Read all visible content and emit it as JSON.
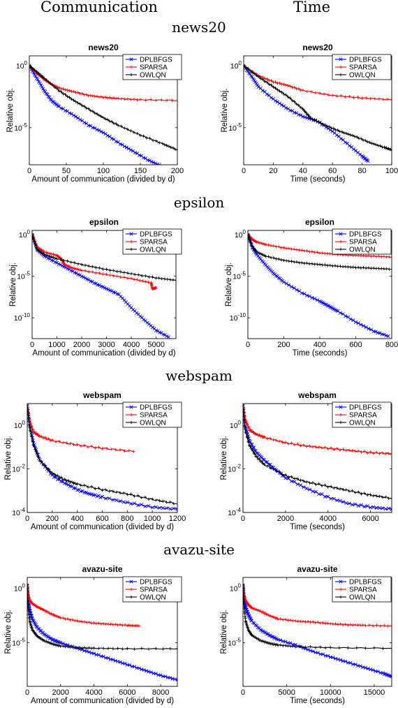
{
  "column_headers": [
    "Communication",
    "Time"
  ],
  "row_headers": [
    "news20",
    "epsilon",
    "webspam",
    "avazu-site"
  ],
  "colors": {
    "DPLBFGS": "#0000ff",
    "SPARSA": "#ff0000",
    "OWLQN": "#000000"
  },
  "chart_data": [
    {
      "type": "line",
      "title": "news20",
      "xlabel": "Amount of communication (divided by d)",
      "ylabel": "Relative obj.",
      "xlim": [
        0,
        200
      ],
      "ylim_log10": [
        -8,
        0.8
      ],
      "y_scale": "log",
      "xticks": [
        0,
        50,
        100,
        150,
        200
      ],
      "yticks": [
        {
          "v": 0,
          "label": "10^0"
        },
        {
          "v": -5,
          "label": "10^-5"
        }
      ],
      "legend": [
        "DPLBFGS",
        "SPARSA",
        "OWLQN"
      ],
      "series": [
        {
          "name": "DPLBFGS",
          "color": "#0000ff",
          "marker": "x",
          "x": [
            0,
            10,
            20,
            30,
            40,
            60,
            80,
            100,
            120,
            140,
            160,
            178
          ],
          "y_log10": [
            0,
            -1,
            -2,
            -2.8,
            -3.3,
            -4,
            -4.8,
            -5.4,
            -6.2,
            -6.9,
            -7.6,
            -8.1
          ]
        },
        {
          "name": "SPARSA",
          "color": "#ff0000",
          "marker": "+",
          "x": [
            0,
            10,
            20,
            30,
            40,
            60,
            80,
            100,
            120,
            150,
            200
          ],
          "y_log10": [
            0,
            -0.6,
            -1.1,
            -1.5,
            -1.8,
            -2.1,
            -2.4,
            -2.55,
            -2.65,
            -2.75,
            -2.8
          ]
        },
        {
          "name": "OWLQN",
          "color": "#000000",
          "marker": "+",
          "x": [
            0,
            10,
            20,
            40,
            60,
            80,
            100,
            120,
            150,
            180,
            200
          ],
          "y_log10": [
            0,
            -0.5,
            -1,
            -2,
            -2.8,
            -3.5,
            -4.2,
            -4.8,
            -5.6,
            -6.3,
            -6.8
          ]
        }
      ]
    },
    {
      "type": "line",
      "title": "news20",
      "xlabel": "Time (seconds)",
      "ylabel": "Relative obj.",
      "xlim": [
        0,
        100
      ],
      "ylim_log10": [
        -8,
        0.8
      ],
      "y_scale": "log",
      "xticks": [
        0,
        20,
        40,
        60,
        80,
        100
      ],
      "yticks": [
        {
          "v": 0,
          "label": "10^0"
        },
        {
          "v": -5,
          "label": "10^-5"
        }
      ],
      "legend": [
        "DPLBFGS",
        "SPARSA",
        "OWLQN"
      ],
      "series": [
        {
          "name": "DPLBFGS",
          "color": "#0000ff",
          "marker": "x",
          "x": [
            0,
            5,
            10,
            20,
            30,
            40,
            50,
            60,
            70,
            80,
            84
          ],
          "y_log10": [
            0,
            -0.8,
            -1.7,
            -2.7,
            -3.5,
            -4.1,
            -4.5,
            -5.3,
            -6.3,
            -7.3,
            -7.7
          ]
        },
        {
          "name": "SPARSA",
          "color": "#ff0000",
          "marker": "+",
          "x": [
            0,
            10,
            20,
            30,
            40,
            60,
            80,
            100
          ],
          "y_log10": [
            0,
            -0.8,
            -1.3,
            -1.6,
            -2,
            -2.4,
            -2.6,
            -2.75
          ]
        },
        {
          "name": "OWLQN",
          "color": "#000000",
          "marker": "+",
          "x": [
            0,
            10,
            20,
            30,
            40,
            45,
            55,
            65,
            75,
            85,
            95,
            100
          ],
          "y_log10": [
            0,
            -0.9,
            -1.7,
            -2.5,
            -3.5,
            -4.2,
            -4.8,
            -5.3,
            -5.7,
            -6.2,
            -6.6,
            -6.8
          ]
        }
      ]
    },
    {
      "type": "line",
      "title": "epsilon",
      "xlabel": "Amount of communication (divided by d)",
      "ylabel": "Relative obj.",
      "xlim": [
        0,
        5800
      ],
      "ylim_log10": [
        -12.5,
        0.5
      ],
      "y_scale": "log",
      "xticks": [
        0,
        1000,
        2000,
        3000,
        4000,
        5000
      ],
      "yticks": [
        {
          "v": 0,
          "label": "10^0"
        },
        {
          "v": -5,
          "label": "10^-5"
        },
        {
          "v": -10,
          "label": "10^-10"
        }
      ],
      "legend": [
        "DPLBFGS",
        "SPARSA",
        "OWLQN"
      ],
      "series": [
        {
          "name": "DPLBFGS",
          "color": "#0000ff",
          "marker": "x",
          "x": [
            0,
            200,
            500,
            1000,
            1500,
            2000,
            2500,
            3000,
            3500,
            4000,
            4500,
            5000,
            5500
          ],
          "y_log10": [
            0,
            -1.8,
            -2.6,
            -3.4,
            -4.2,
            -5,
            -5.8,
            -6.5,
            -7.2,
            -8.8,
            -10.2,
            -11.5,
            -12.3
          ]
        },
        {
          "name": "SPARSA",
          "color": "#ff0000",
          "marker": "+",
          "x": [
            0,
            200,
            500,
            1000,
            1200,
            1300,
            1600,
            2000,
            3000,
            4000,
            4800,
            4850,
            5000
          ],
          "y_log10": [
            0,
            -1.5,
            -2.1,
            -2.5,
            -3,
            -3.6,
            -4,
            -4.3,
            -4.8,
            -5.3,
            -5.8,
            -6.5,
            -6.4
          ]
        },
        {
          "name": "OWLQN",
          "color": "#000000",
          "marker": "+",
          "x": [
            0,
            200,
            500,
            1000,
            2000,
            3000,
            4000,
            5000,
            5800
          ],
          "y_log10": [
            0,
            -1.8,
            -2.4,
            -2.9,
            -3.6,
            -4.2,
            -4.7,
            -5.2,
            -5.5
          ]
        }
      ]
    },
    {
      "type": "line",
      "title": "epsilon",
      "xlabel": "Time (seconds)",
      "ylabel": "Relative obj.",
      "xlim": [
        0,
        800
      ],
      "ylim_log10": [
        -12.5,
        0.5
      ],
      "y_scale": "log",
      "xticks": [
        0,
        200,
        400,
        600,
        800
      ],
      "yticks": [
        {
          "v": 0,
          "label": "10^0"
        },
        {
          "v": -5,
          "label": "10^-5"
        },
        {
          "v": -10,
          "label": "10^-10"
        }
      ],
      "legend": [
        "DPLBFGS",
        "SPARSA",
        "OWLQN"
      ],
      "series": [
        {
          "name": "DPLBFGS",
          "color": "#0000ff",
          "marker": "x",
          "x": [
            0,
            25,
            50,
            100,
            150,
            200,
            300,
            400,
            450,
            500,
            600,
            700,
            780
          ],
          "y_log10": [
            0,
            -1.5,
            -2.4,
            -3.7,
            -4.8,
            -5.7,
            -7,
            -8,
            -8.6,
            -9.2,
            -10.5,
            -11.6,
            -12.2
          ]
        },
        {
          "name": "SPARSA",
          "color": "#ff0000",
          "marker": "+",
          "x": [
            0,
            25,
            50,
            100,
            200,
            300,
            400,
            500,
            600,
            700,
            800
          ],
          "y_log10": [
            0,
            -0.6,
            -0.9,
            -1.2,
            -1.6,
            -1.9,
            -2.2,
            -2.4,
            -2.5,
            -2.6,
            -2.7
          ]
        },
        {
          "name": "OWLQN",
          "color": "#000000",
          "marker": "+",
          "x": [
            0,
            25,
            50,
            100,
            200,
            300,
            400,
            500,
            600,
            700,
            800
          ],
          "y_log10": [
            0,
            -1.5,
            -2.1,
            -2.6,
            -3.1,
            -3.4,
            -3.6,
            -3.8,
            -3.95,
            -4.05,
            -4.15
          ]
        }
      ]
    },
    {
      "type": "line",
      "title": "webspam",
      "xlabel": "Amount of communication (divided by d)",
      "ylabel": "Relative obj.",
      "xlim": [
        0,
        1200
      ],
      "ylim_log10": [
        -4,
        1
      ],
      "y_scale": "log",
      "xticks": [
        0,
        200,
        400,
        600,
        800,
        1000,
        1200
      ],
      "yticks": [
        {
          "v": 0,
          "label": "10^0"
        },
        {
          "v": -2,
          "label": "10^-2"
        },
        {
          "v": -4,
          "label": "10^-4"
        }
      ],
      "legend": [
        "DPLBFGS",
        "SPARSA",
        "OWLQN"
      ],
      "series": [
        {
          "name": "DPLBFGS",
          "color": "#0000ff",
          "marker": "x",
          "x": [
            0,
            20,
            50,
            100,
            200,
            300,
            400,
            500,
            600,
            800,
            1000,
            1200
          ],
          "y_log10": [
            0.9,
            0,
            -0.8,
            -1.6,
            -2.3,
            -2.65,
            -2.95,
            -3.15,
            -3.3,
            -3.55,
            -3.75,
            -3.85
          ]
        },
        {
          "name": "SPARSA",
          "color": "#ff0000",
          "marker": "+",
          "x": [
            0,
            20,
            50,
            100,
            200,
            400,
            600,
            850
          ],
          "y_log10": [
            0.9,
            0.2,
            -0.3,
            -0.5,
            -0.7,
            -0.9,
            -1.05,
            -1.2
          ]
        },
        {
          "name": "OWLQN",
          "color": "#000000",
          "marker": "+",
          "x": [
            0,
            20,
            50,
            100,
            200,
            300,
            400,
            600,
            800,
            1000,
            1200
          ],
          "y_log10": [
            0.9,
            -0.1,
            -0.9,
            -1.6,
            -2.2,
            -2.5,
            -2.7,
            -2.95,
            -3.15,
            -3.4,
            -3.6
          ]
        }
      ]
    },
    {
      "type": "line",
      "title": "webspam",
      "xlabel": "Time (seconds)",
      "ylabel": "Relative obj.",
      "xlim": [
        0,
        7000
      ],
      "ylim_log10": [
        -4,
        1
      ],
      "y_scale": "log",
      "xticks": [
        0,
        2000,
        4000,
        6000
      ],
      "yticks": [
        {
          "v": 0,
          "label": "10^0"
        },
        {
          "v": -2,
          "label": "10^-2"
        },
        {
          "v": -4,
          "label": "10^-4"
        }
      ],
      "legend": [
        "DPLBFGS",
        "SPARSA",
        "OWLQN"
      ],
      "series": [
        {
          "name": "DPLBFGS",
          "color": "#0000ff",
          "marker": "x",
          "x": [
            0,
            100,
            300,
            600,
            1000,
            1500,
            2000,
            3000,
            4000,
            5000,
            6000,
            7000
          ],
          "y_log10": [
            0.9,
            0,
            -0.7,
            -1.2,
            -1.6,
            -2,
            -2.4,
            -2.9,
            -3.3,
            -3.6,
            -3.75,
            -3.85
          ]
        },
        {
          "name": "SPARSA",
          "color": "#ff0000",
          "marker": "+",
          "x": [
            0,
            100,
            300,
            600,
            1000,
            2000,
            3000,
            4000,
            5000,
            6000,
            7000
          ],
          "y_log10": [
            0.9,
            0.3,
            -0.2,
            -0.4,
            -0.55,
            -0.8,
            -0.95,
            -1.05,
            -1.15,
            -1.25,
            -1.3
          ]
        },
        {
          "name": "OWLQN",
          "color": "#000000",
          "marker": "+",
          "x": [
            0,
            100,
            300,
            600,
            1000,
            2000,
            3000,
            4000,
            5000,
            6000,
            7000
          ],
          "y_log10": [
            0.9,
            -0.2,
            -0.9,
            -1.4,
            -1.8,
            -2.3,
            -2.6,
            -2.8,
            -3,
            -3.2,
            -3.35
          ]
        }
      ]
    },
    {
      "type": "line",
      "title": "avazu-site",
      "xlabel": "Amount of communication (divided by d)",
      "ylabel": "Relative obj.",
      "xlim": [
        0,
        9000
      ],
      "ylim_log10": [
        -9,
        1
      ],
      "y_scale": "log",
      "xticks": [
        0,
        2000,
        4000,
        6000,
        8000
      ],
      "yticks": [
        {
          "v": 0,
          "label": "10^0"
        },
        {
          "v": -5,
          "label": "10^-5"
        }
      ],
      "legend": [
        "DPLBFGS",
        "SPARSA",
        "OWLQN"
      ],
      "series": [
        {
          "name": "DPLBFGS",
          "color": "#0000ff",
          "marker": "x",
          "x": [
            0,
            50,
            150,
            300,
            600,
            1000,
            1500,
            2000,
            3000,
            4000,
            5000,
            6000,
            7000,
            8000,
            9000
          ],
          "y_log10": [
            0.3,
            -1,
            -2,
            -2.8,
            -3.6,
            -4.2,
            -4.7,
            -5,
            -5.5,
            -6,
            -6.5,
            -7,
            -7.5,
            -8,
            -8.4
          ]
        },
        {
          "name": "SPARSA",
          "color": "#ff0000",
          "marker": "+",
          "x": [
            0,
            50,
            150,
            300,
            600,
            1000,
            1500,
            2000,
            3000,
            4000,
            5000,
            6000,
            6700
          ],
          "y_log10": [
            0.3,
            -0.6,
            -1.1,
            -1.4,
            -1.7,
            -2,
            -2.4,
            -2.7,
            -3,
            -3.2,
            -3.3,
            -3.4,
            -3.45
          ]
        },
        {
          "name": "OWLQN",
          "color": "#000000",
          "marker": "+",
          "x": [
            0,
            50,
            150,
            300,
            600,
            1000,
            1500,
            2000,
            3000,
            4000,
            6000,
            9000
          ],
          "y_log10": [
            0.3,
            -1.8,
            -3,
            -3.8,
            -4.4,
            -4.8,
            -5.1,
            -5.3,
            -5.45,
            -5.5,
            -5.55,
            -5.55
          ]
        }
      ]
    },
    {
      "type": "line",
      "title": "avazu-site",
      "xlabel": "Time (seconds)",
      "ylabel": "Relative obj.",
      "xlim": [
        0,
        17000
      ],
      "ylim_log10": [
        -9,
        1
      ],
      "y_scale": "log",
      "xticks": [
        0,
        5000,
        10000,
        15000
      ],
      "yticks": [
        {
          "v": 0,
          "label": "10^0"
        },
        {
          "v": -5,
          "label": "10^-5"
        }
      ],
      "legend": [
        "DPLBFGS",
        "SPARSA",
        "OWLQN"
      ],
      "series": [
        {
          "name": "DPLBFGS",
          "color": "#0000ff",
          "marker": "x",
          "x": [
            0,
            100,
            300,
            600,
            1000,
            2000,
            3000,
            4000,
            6000,
            8000,
            10000,
            12000,
            14000,
            16000,
            17000
          ],
          "y_log10": [
            0.3,
            -0.8,
            -1.7,
            -2.4,
            -3,
            -3.8,
            -4.3,
            -4.7,
            -5.2,
            -5.8,
            -6.3,
            -6.8,
            -7.3,
            -7.8,
            -8.1
          ]
        },
        {
          "name": "SPARSA",
          "color": "#ff0000",
          "marker": "+",
          "x": [
            0,
            100,
            300,
            600,
            1000,
            2000,
            3000,
            4000,
            6000,
            8000,
            10000,
            12000,
            14000,
            17000
          ],
          "y_log10": [
            0.3,
            -0.6,
            -1.1,
            -1.5,
            -1.8,
            -2.1,
            -2.5,
            -2.8,
            -3,
            -3.1,
            -3.25,
            -3.35,
            -3.4,
            -3.45
          ]
        },
        {
          "name": "OWLQN",
          "color": "#000000",
          "marker": "+",
          "x": [
            0,
            100,
            300,
            600,
            1000,
            2000,
            3000,
            4000,
            6000,
            10000,
            17000
          ],
          "y_log10": [
            0.3,
            -1.5,
            -3,
            -3.8,
            -4.3,
            -4.8,
            -5.05,
            -5.2,
            -5.35,
            -5.45,
            -5.5
          ]
        }
      ]
    }
  ]
}
